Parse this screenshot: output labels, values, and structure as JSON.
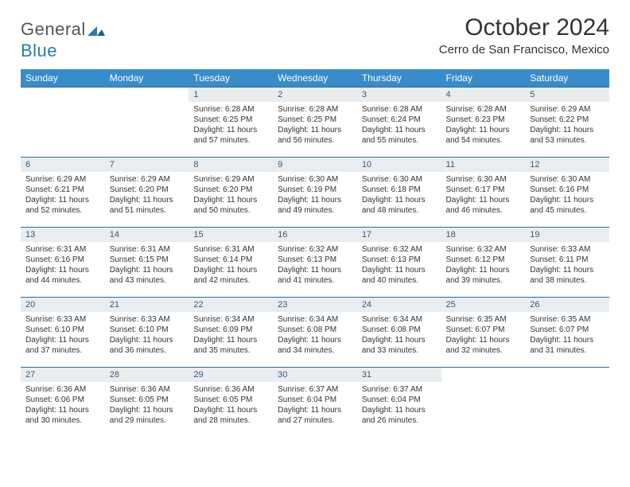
{
  "brand": {
    "part1": "General",
    "part2": "Blue"
  },
  "title": "October 2024",
  "location": "Cerro de San Francisco, Mexico",
  "colors": {
    "header_bg": "#3a8bc9",
    "header_text": "#ffffff",
    "daynum_bg": "#e9edf0",
    "daynum_text": "#3a5a75",
    "week_border": "#2a6da0",
    "page_bg": "#ffffff",
    "body_text": "#333333"
  },
  "fonts": {
    "title_size_pt": 30,
    "location_size_pt": 15,
    "dayhead_size_pt": 12,
    "body_size_pt": 10
  },
  "dayHeaders": [
    "Sunday",
    "Monday",
    "Tuesday",
    "Wednesday",
    "Thursday",
    "Friday",
    "Saturday"
  ],
  "weeks": [
    [
      null,
      null,
      {
        "n": "1",
        "sr": "Sunrise: 6:28 AM",
        "ss": "Sunset: 6:25 PM",
        "d1": "Daylight: 11 hours",
        "d2": "and 57 minutes."
      },
      {
        "n": "2",
        "sr": "Sunrise: 6:28 AM",
        "ss": "Sunset: 6:25 PM",
        "d1": "Daylight: 11 hours",
        "d2": "and 56 minutes."
      },
      {
        "n": "3",
        "sr": "Sunrise: 6:28 AM",
        "ss": "Sunset: 6:24 PM",
        "d1": "Daylight: 11 hours",
        "d2": "and 55 minutes."
      },
      {
        "n": "4",
        "sr": "Sunrise: 6:28 AM",
        "ss": "Sunset: 6:23 PM",
        "d1": "Daylight: 11 hours",
        "d2": "and 54 minutes."
      },
      {
        "n": "5",
        "sr": "Sunrise: 6:29 AM",
        "ss": "Sunset: 6:22 PM",
        "d1": "Daylight: 11 hours",
        "d2": "and 53 minutes."
      }
    ],
    [
      {
        "n": "6",
        "sr": "Sunrise: 6:29 AM",
        "ss": "Sunset: 6:21 PM",
        "d1": "Daylight: 11 hours",
        "d2": "and 52 minutes."
      },
      {
        "n": "7",
        "sr": "Sunrise: 6:29 AM",
        "ss": "Sunset: 6:20 PM",
        "d1": "Daylight: 11 hours",
        "d2": "and 51 minutes."
      },
      {
        "n": "8",
        "sr": "Sunrise: 6:29 AM",
        "ss": "Sunset: 6:20 PM",
        "d1": "Daylight: 11 hours",
        "d2": "and 50 minutes."
      },
      {
        "n": "9",
        "sr": "Sunrise: 6:30 AM",
        "ss": "Sunset: 6:19 PM",
        "d1": "Daylight: 11 hours",
        "d2": "and 49 minutes."
      },
      {
        "n": "10",
        "sr": "Sunrise: 6:30 AM",
        "ss": "Sunset: 6:18 PM",
        "d1": "Daylight: 11 hours",
        "d2": "and 48 minutes."
      },
      {
        "n": "11",
        "sr": "Sunrise: 6:30 AM",
        "ss": "Sunset: 6:17 PM",
        "d1": "Daylight: 11 hours",
        "d2": "and 46 minutes."
      },
      {
        "n": "12",
        "sr": "Sunrise: 6:30 AM",
        "ss": "Sunset: 6:16 PM",
        "d1": "Daylight: 11 hours",
        "d2": "and 45 minutes."
      }
    ],
    [
      {
        "n": "13",
        "sr": "Sunrise: 6:31 AM",
        "ss": "Sunset: 6:16 PM",
        "d1": "Daylight: 11 hours",
        "d2": "and 44 minutes."
      },
      {
        "n": "14",
        "sr": "Sunrise: 6:31 AM",
        "ss": "Sunset: 6:15 PM",
        "d1": "Daylight: 11 hours",
        "d2": "and 43 minutes."
      },
      {
        "n": "15",
        "sr": "Sunrise: 6:31 AM",
        "ss": "Sunset: 6:14 PM",
        "d1": "Daylight: 11 hours",
        "d2": "and 42 minutes."
      },
      {
        "n": "16",
        "sr": "Sunrise: 6:32 AM",
        "ss": "Sunset: 6:13 PM",
        "d1": "Daylight: 11 hours",
        "d2": "and 41 minutes."
      },
      {
        "n": "17",
        "sr": "Sunrise: 6:32 AM",
        "ss": "Sunset: 6:13 PM",
        "d1": "Daylight: 11 hours",
        "d2": "and 40 minutes."
      },
      {
        "n": "18",
        "sr": "Sunrise: 6:32 AM",
        "ss": "Sunset: 6:12 PM",
        "d1": "Daylight: 11 hours",
        "d2": "and 39 minutes."
      },
      {
        "n": "19",
        "sr": "Sunrise: 6:33 AM",
        "ss": "Sunset: 6:11 PM",
        "d1": "Daylight: 11 hours",
        "d2": "and 38 minutes."
      }
    ],
    [
      {
        "n": "20",
        "sr": "Sunrise: 6:33 AM",
        "ss": "Sunset: 6:10 PM",
        "d1": "Daylight: 11 hours",
        "d2": "and 37 minutes."
      },
      {
        "n": "21",
        "sr": "Sunrise: 6:33 AM",
        "ss": "Sunset: 6:10 PM",
        "d1": "Daylight: 11 hours",
        "d2": "and 36 minutes."
      },
      {
        "n": "22",
        "sr": "Sunrise: 6:34 AM",
        "ss": "Sunset: 6:09 PM",
        "d1": "Daylight: 11 hours",
        "d2": "and 35 minutes."
      },
      {
        "n": "23",
        "sr": "Sunrise: 6:34 AM",
        "ss": "Sunset: 6:08 PM",
        "d1": "Daylight: 11 hours",
        "d2": "and 34 minutes."
      },
      {
        "n": "24",
        "sr": "Sunrise: 6:34 AM",
        "ss": "Sunset: 6:08 PM",
        "d1": "Daylight: 11 hours",
        "d2": "and 33 minutes."
      },
      {
        "n": "25",
        "sr": "Sunrise: 6:35 AM",
        "ss": "Sunset: 6:07 PM",
        "d1": "Daylight: 11 hours",
        "d2": "and 32 minutes."
      },
      {
        "n": "26",
        "sr": "Sunrise: 6:35 AM",
        "ss": "Sunset: 6:07 PM",
        "d1": "Daylight: 11 hours",
        "d2": "and 31 minutes."
      }
    ],
    [
      {
        "n": "27",
        "sr": "Sunrise: 6:36 AM",
        "ss": "Sunset: 6:06 PM",
        "d1": "Daylight: 11 hours",
        "d2": "and 30 minutes."
      },
      {
        "n": "28",
        "sr": "Sunrise: 6:36 AM",
        "ss": "Sunset: 6:05 PM",
        "d1": "Daylight: 11 hours",
        "d2": "and 29 minutes."
      },
      {
        "n": "29",
        "sr": "Sunrise: 6:36 AM",
        "ss": "Sunset: 6:05 PM",
        "d1": "Daylight: 11 hours",
        "d2": "and 28 minutes."
      },
      {
        "n": "30",
        "sr": "Sunrise: 6:37 AM",
        "ss": "Sunset: 6:04 PM",
        "d1": "Daylight: 11 hours",
        "d2": "and 27 minutes."
      },
      {
        "n": "31",
        "sr": "Sunrise: 6:37 AM",
        "ss": "Sunset: 6:04 PM",
        "d1": "Daylight: 11 hours",
        "d2": "and 26 minutes."
      },
      null,
      null
    ]
  ]
}
